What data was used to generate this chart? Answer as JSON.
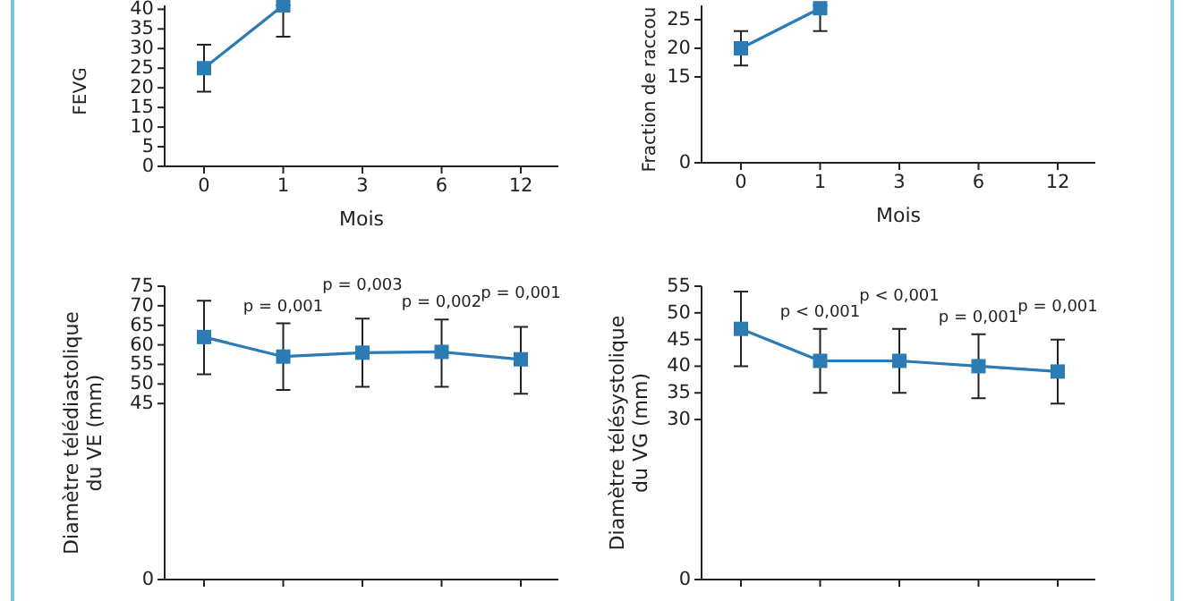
{
  "chart_data": [
    {
      "type": "line",
      "ylabel": "FEVG",
      "xlabel": "Mois",
      "categories": [
        "0",
        "1",
        "3",
        "6",
        "12"
      ],
      "ylim": [
        0,
        41
      ],
      "yticks": [
        0,
        5,
        10,
        15,
        20,
        25,
        30,
        35,
        40
      ],
      "marker": "square",
      "line_style": "solid",
      "series": [
        {
          "color": "#2b7bb5",
          "values": [
            25,
            41,
            null,
            null,
            null
          ],
          "errors": [
            [
              19,
              31
            ],
            [
              33,
              41
            ],
            null,
            null,
            null
          ]
        }
      ]
    },
    {
      "type": "line",
      "ylabel": "Fraction de raccou",
      "xlabel": "Mois",
      "categories": [
        "0",
        "1",
        "3",
        "6",
        "12"
      ],
      "ylim": [
        0,
        27.5
      ],
      "yticks": [
        0,
        15,
        20,
        25
      ],
      "marker": "square",
      "line_style": "solid",
      "series": [
        {
          "color": "#2b7bb5",
          "values": [
            20,
            27,
            null,
            null,
            null
          ],
          "errors": [
            [
              17,
              23
            ],
            [
              23,
              27.5
            ],
            null,
            null,
            null
          ]
        }
      ]
    },
    {
      "type": "line",
      "ylabel": "Diamètre télédiastolique\ndu VE (mm)",
      "categories": [
        "0",
        "1",
        "3",
        "6",
        "12"
      ],
      "ylim": [
        0,
        75
      ],
      "yticks": [
        0,
        45,
        50,
        55,
        60,
        65,
        70,
        75
      ],
      "marker": "square",
      "line_style": "solid",
      "tick_labels": "y",
      "series": [
        {
          "color": "#2b7bb5",
          "values": [
            62,
            57,
            58,
            58.2,
            56.3
          ],
          "errors": [
            [
              52.5,
              71.3
            ],
            [
              48.5,
              65.5
            ],
            [
              49.3,
              66.7
            ],
            [
              49.3,
              66.5
            ],
            [
              47.5,
              64.6
            ]
          ]
        }
      ],
      "annotations": [
        "p = 0,001",
        "p = 0,003",
        "p = 0,002",
        "p = 0,001"
      ]
    },
    {
      "type": "line",
      "ylabel": "Diamètre télésystolique\ndu VG (mm)",
      "categories": [
        "0",
        "1",
        "3",
        "6",
        "12"
      ],
      "ylim": [
        0,
        55
      ],
      "yticks": [
        0,
        30,
        35,
        40,
        45,
        50,
        55
      ],
      "marker": "square",
      "line_style": "solid",
      "tick_labels": "y",
      "series": [
        {
          "color": "#2b7bb5",
          "values": [
            47,
            41,
            41,
            40,
            39
          ],
          "errors": [
            [
              40,
              54
            ],
            [
              35,
              47
            ],
            [
              35,
              47
            ],
            [
              34,
              46
            ],
            [
              33,
              45
            ]
          ]
        }
      ],
      "annotations": [
        "p < 0,001",
        "p < 0,001",
        "p = 0,001",
        "p = 0,001"
      ]
    }
  ]
}
